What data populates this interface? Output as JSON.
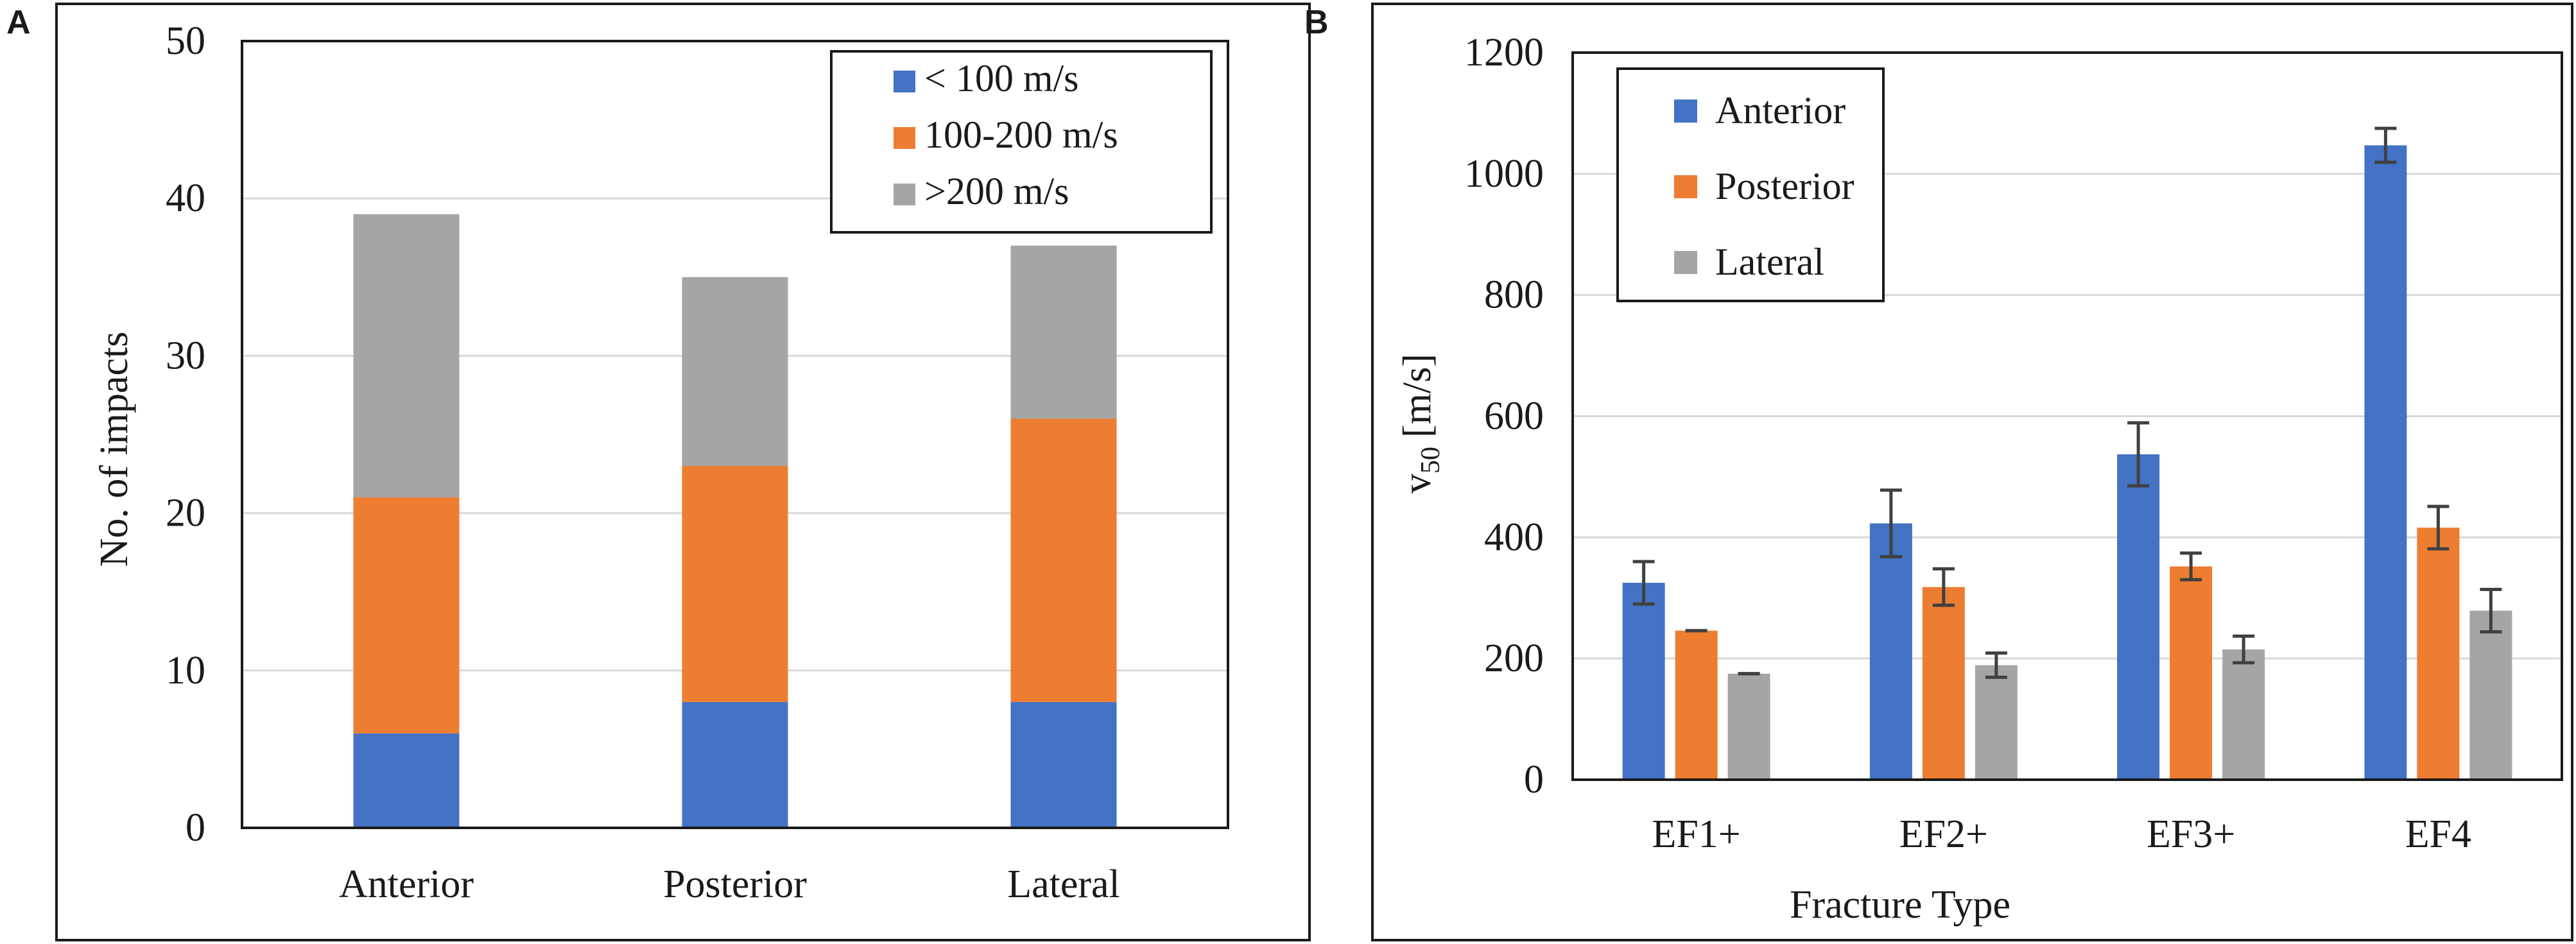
{
  "chart_data": [
    {
      "panel_label": "A",
      "type": "bar",
      "stacked": true,
      "categories": [
        "Anterior",
        "Posterior",
        "Lateral"
      ],
      "series": [
        {
          "name": "< 100 m/s",
          "values": [
            6,
            8,
            8
          ],
          "color": "#4472C4"
        },
        {
          "name": "100-200 m/s",
          "values": [
            15,
            15,
            18
          ],
          "color": "#ED7D31"
        },
        {
          "name": ">200 m/s",
          "values": [
            18,
            12,
            11
          ],
          "color": "#A5A5A5"
        }
      ],
      "yticks": [
        "0",
        "10",
        "20",
        "30",
        "40",
        "50"
      ],
      "ylim": [
        0,
        50
      ],
      "ylabel": "No. of impacts",
      "xlabel": "",
      "grid": true,
      "legend": "top-right"
    },
    {
      "panel_label": "B",
      "type": "bar",
      "categories": [
        "EF1+",
        "EF2+",
        "EF3+",
        "EF4"
      ],
      "series": [
        {
          "name": "Anterior",
          "values": [
            325,
            423,
            537,
            1047
          ],
          "errors": [
            35,
            55,
            52,
            28
          ],
          "color": "#4472C4"
        },
        {
          "name": "Posterior",
          "values": [
            246,
            318,
            352,
            416
          ],
          "errors": [
            0,
            30,
            22,
            35
          ],
          "color": "#ED7D31"
        },
        {
          "name": "Lateral",
          "values": [
            175,
            189,
            215,
            279
          ],
          "errors": [
            0,
            20,
            22,
            35
          ],
          "color": "#A5A5A5"
        }
      ],
      "yticks": [
        "0",
        "200",
        "400",
        "600",
        "800",
        "1000",
        "1200"
      ],
      "ylim": [
        0,
        1200
      ],
      "ylabel_main": "v",
      "ylabel_sub": "50",
      "ylabel_unit": "[m/s]",
      "xlabel": "Fracture Type",
      "grid": true,
      "legend": "top-left"
    }
  ]
}
